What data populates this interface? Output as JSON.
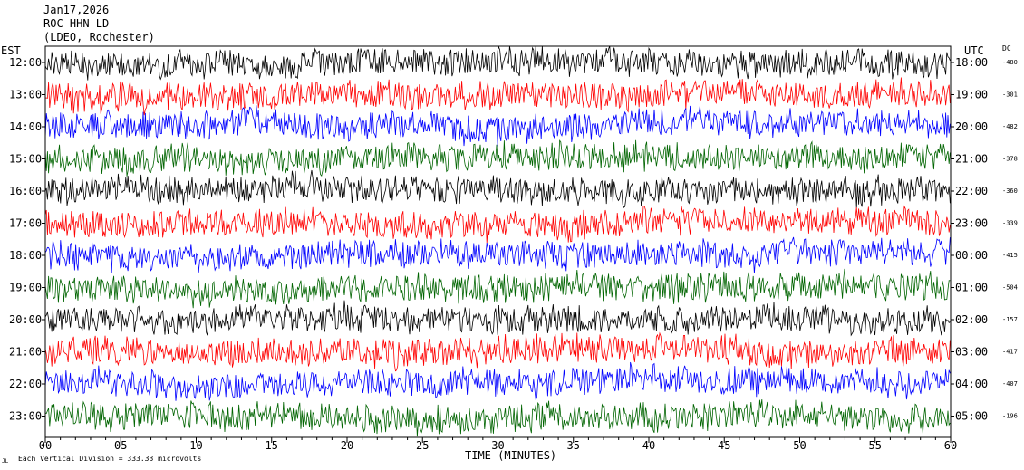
{
  "header": {
    "date": "Jan17,2026",
    "station": "ROC HHN LD --",
    "network": "(LDEO, Rochester)"
  },
  "labels": {
    "left_zone": "EST",
    "right_zone": "UTC",
    "dc_header": "DC",
    "xlabel": "TIME (MINUTES)",
    "footer": "Each Vertical Division = 333.33 microvolts",
    "corner_mark": "JL"
  },
  "colors": {
    "black": "#000000",
    "red": "#ff0000",
    "blue": "#0000ff",
    "green": "#006400"
  },
  "chart_data": {
    "type": "line",
    "title": "ROC HHN LD --",
    "xlabel": "TIME (MINUTES)",
    "xlim": [
      0,
      60
    ],
    "xticks": [
      "00",
      "05",
      "10",
      "15",
      "20",
      "25",
      "30",
      "35",
      "40",
      "45",
      "50",
      "55",
      "60"
    ],
    "series": [
      {
        "est": "12:00",
        "utc": "18:00",
        "dc": "-480",
        "color": "#000000"
      },
      {
        "est": "13:00",
        "utc": "19:00",
        "dc": "-301",
        "color": "#ff0000"
      },
      {
        "est": "14:00",
        "utc": "20:00",
        "dc": "-482",
        "color": "#0000ff"
      },
      {
        "est": "15:00",
        "utc": "21:00",
        "dc": "-378",
        "color": "#006400"
      },
      {
        "est": "16:00",
        "utc": "22:00",
        "dc": "-360",
        "color": "#000000"
      },
      {
        "est": "17:00",
        "utc": "23:00",
        "dc": "-339",
        "color": "#ff0000"
      },
      {
        "est": "18:00",
        "utc": "00:00",
        "dc": "-415",
        "color": "#0000ff"
      },
      {
        "est": "19:00",
        "utc": "01:00",
        "dc": "-504",
        "color": "#006400"
      },
      {
        "est": "20:00",
        "utc": "02:00",
        "dc": "-157",
        "color": "#000000"
      },
      {
        "est": "21:00",
        "utc": "03:00",
        "dc": "-417",
        "color": "#ff0000"
      },
      {
        "est": "22:00",
        "utc": "04:00",
        "dc": "-407",
        "color": "#0000ff"
      },
      {
        "est": "23:00",
        "utc": "05:00",
        "dc": "-196",
        "color": "#006400"
      }
    ]
  }
}
